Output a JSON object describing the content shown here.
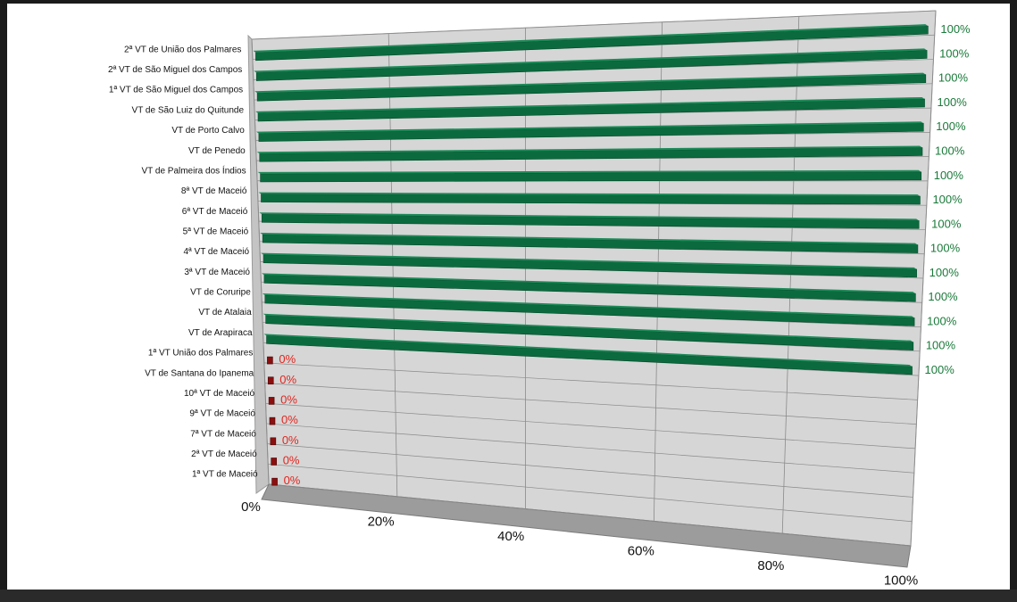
{
  "chart_data": {
    "type": "bar",
    "orientation": "horizontal",
    "style": "3d",
    "title": "",
    "xlabel": "",
    "ylabel": "",
    "categories": [
      "2ª VT de União dos Palmares",
      "2ª VT de São Miguel dos Campos",
      "1ª VT de São Miguel dos Campos",
      "VT de São Luiz do Quitunde",
      "VT de Porto Calvo",
      "VT de Penedo",
      "VT de Palmeira dos Índios",
      "8ª VT de Maceió",
      "6ª VT de Maceió",
      "5ª VT de Maceió",
      "4ª VT de Maceió",
      "3ª VT de Maceió",
      "VT de Coruripe",
      "VT de Atalaia",
      "VT de Arapiraca",
      "1ª VT União dos Palmares",
      "VT de Santana do Ipanema",
      "10ª VT de Maceió",
      "9ª VT de Maceió",
      "7ª VT de Maceió",
      "2ª VT de Maceió",
      "1ª VT de Maceió"
    ],
    "values": [
      1,
      1,
      1,
      1,
      1,
      1,
      1,
      1,
      1,
      1,
      1,
      1,
      1,
      1,
      1,
      0,
      0,
      0,
      0,
      0,
      0,
      0
    ],
    "value_labels": [
      "100%",
      "100%",
      "100%",
      "100%",
      "100%",
      "100%",
      "100%",
      "100%",
      "100%",
      "100%",
      "100%",
      "100%",
      "100%",
      "100%",
      "100%",
      "0%",
      "0%",
      "0%",
      "0%",
      "0%",
      "0%",
      "0%"
    ],
    "xlim": [
      0,
      1
    ],
    "ticks": [
      "0%",
      "20%",
      "40%",
      "60%",
      "80%",
      "100%"
    ],
    "grid": true,
    "legend": "none",
    "colors": {
      "full_bar": "#0b6b3f",
      "full_bar_top": "#1e8a58",
      "zero_bar": "#8b0f0f",
      "full_label": "#1a7a3a",
      "zero_label": "#e0261f",
      "wall": "#d6d6d6",
      "floor": "#9c9c9c",
      "grid": "#8a8a8a"
    }
  }
}
